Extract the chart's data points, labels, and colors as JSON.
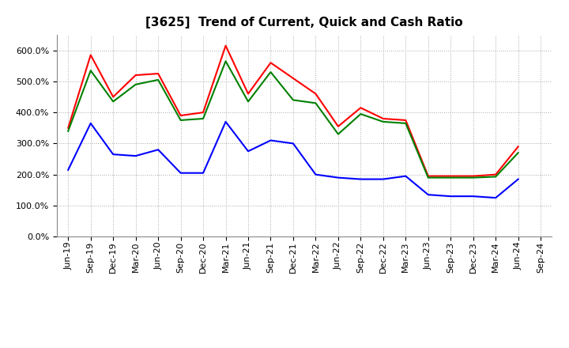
{
  "title": "[3625]  Trend of Current, Quick and Cash Ratio",
  "x_labels": [
    "Jun-19",
    "Sep-19",
    "Dec-19",
    "Mar-20",
    "Jun-20",
    "Sep-20",
    "Dec-20",
    "Mar-21",
    "Jun-21",
    "Sep-21",
    "Dec-21",
    "Mar-22",
    "Jun-22",
    "Sep-22",
    "Dec-22",
    "Mar-23",
    "Jun-23",
    "Sep-23",
    "Dec-23",
    "Mar-24",
    "Jun-24",
    "Sep-24"
  ],
  "current_ratio": [
    350,
    585,
    450,
    520,
    525,
    390,
    400,
    615,
    460,
    560,
    510,
    460,
    355,
    415,
    380,
    375,
    195,
    195,
    195,
    200,
    290,
    null
  ],
  "quick_ratio": [
    340,
    535,
    435,
    490,
    505,
    375,
    380,
    565,
    435,
    530,
    440,
    430,
    330,
    395,
    370,
    365,
    190,
    190,
    190,
    193,
    270,
    null
  ],
  "cash_ratio": [
    215,
    365,
    265,
    260,
    280,
    205,
    205,
    370,
    275,
    310,
    300,
    200,
    190,
    185,
    185,
    195,
    135,
    130,
    130,
    125,
    185,
    null
  ],
  "current_color": "#ff0000",
  "quick_color": "#008000",
  "cash_color": "#0000ff",
  "ylim": [
    0,
    650
  ],
  "yticks": [
    0,
    100,
    200,
    300,
    400,
    500,
    600
  ],
  "background_color": "#ffffff",
  "plot_bg_color": "#ffffff",
  "grid_color": "#aaaaaa",
  "line_width": 1.5,
  "title_fontsize": 11,
  "tick_fontsize": 8,
  "legend_fontsize": 9
}
